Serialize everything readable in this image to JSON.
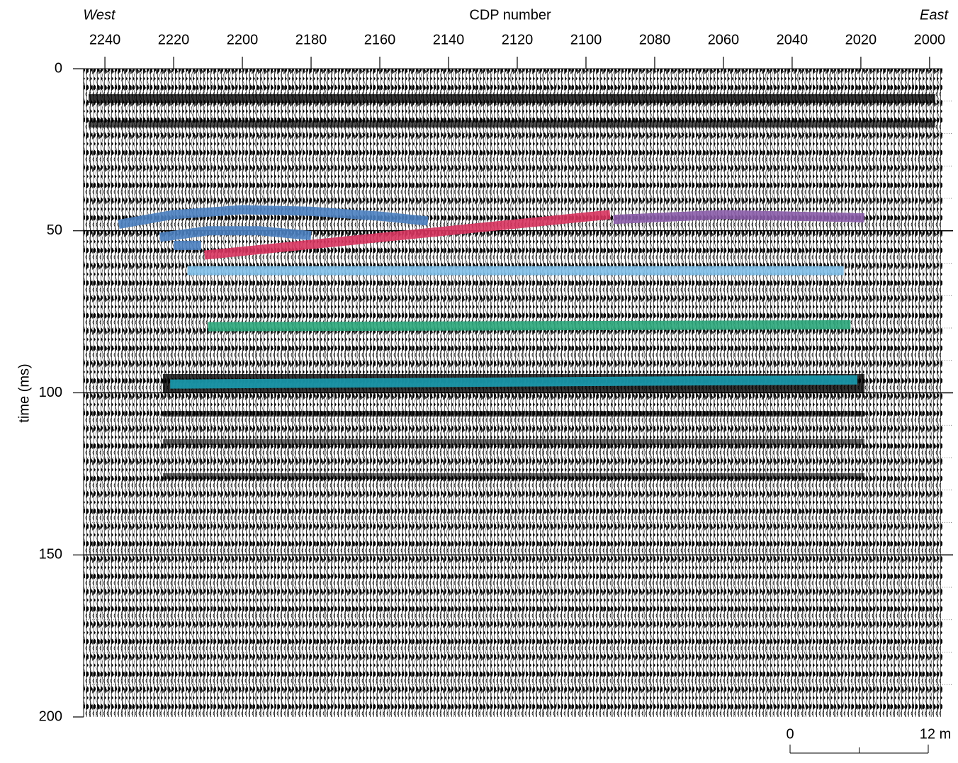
{
  "chart_data": {
    "type": "line",
    "title": "CDP number",
    "west_label": "West",
    "east_label": "East",
    "y_label": "time (ms)",
    "xlim": [
      2246.2,
      1997.3
    ],
    "xticks": [
      2240,
      2220,
      2200,
      2180,
      2160,
      2140,
      2120,
      2100,
      2080,
      2060,
      2040,
      2020,
      2000
    ],
    "ylim": [
      0,
      200
    ],
    "yticks": [
      0,
      50,
      100,
      150,
      200
    ],
    "y_minor_ticks": [
      10,
      20,
      30,
      40,
      60,
      70,
      80,
      90,
      110,
      120,
      130,
      140,
      160,
      170,
      180,
      190
    ],
    "y_inverted": true,
    "grid": true,
    "series": [
      {
        "color": "#4a7fc0",
        "x": [
          2236,
          2220,
          2200,
          2180,
          2160,
          2146,
          null,
          2224,
          2210,
          2195,
          2180,
          null,
          2220,
          2212
        ],
        "values": [
          48,
          45,
          43.5,
          44,
          45.5,
          47,
          null,
          52,
          50,
          50,
          51.5,
          null,
          54.5,
          54.5
        ]
      },
      {
        "color": "#d8345f",
        "x": [
          2211,
          2093
        ],
        "values": [
          57.5,
          45
        ]
      },
      {
        "color": "#8a5ca8",
        "x": [
          2092,
          2060,
          2019
        ],
        "values": [
          46.5,
          45,
          46
        ]
      },
      {
        "color": "#7fbfe8",
        "x": [
          2216,
          2025
        ],
        "values": [
          62.3,
          62.3
        ]
      },
      {
        "color": "#2aa67a",
        "x": [
          2210,
          2023
        ],
        "values": [
          79.6,
          79
        ]
      },
      {
        "color": "#1a9cb0",
        "x": [
          2221,
          2021
        ],
        "values": [
          97.3,
          96
        ]
      }
    ],
    "scale_bar": {
      "ticks": [
        0,
        {
          "value": 12,
          "label": "12 m"
        }
      ]
    }
  }
}
